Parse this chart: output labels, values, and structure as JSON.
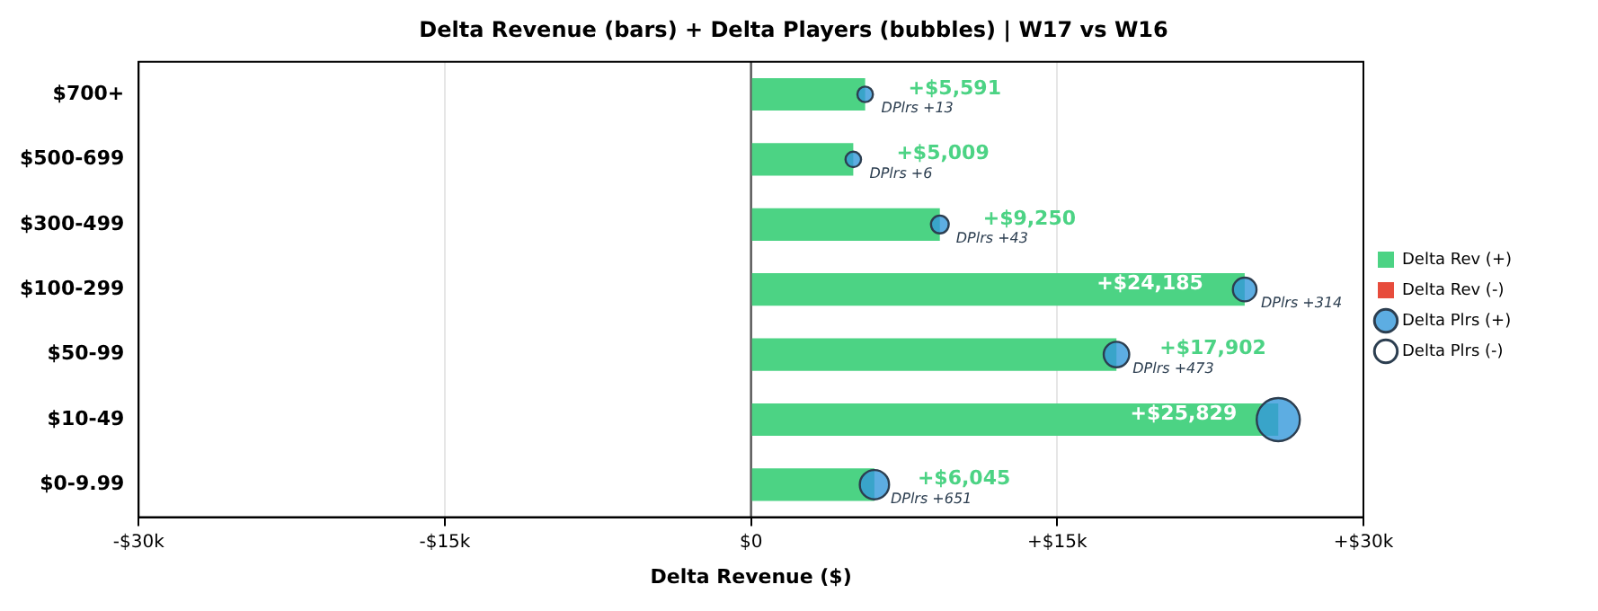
{
  "chart_data": {
    "type": "bar",
    "orientation": "horizontal",
    "title": "Delta Revenue (bars) + Delta Players (bubbles) | W17 vs W16",
    "xlabel": "Delta Revenue ($)",
    "categories": [
      "$700+",
      "$500-699",
      "$300-499",
      "$100-299",
      "$50-99",
      "$10-49",
      "$0-9.99"
    ],
    "xlim": [
      -30000,
      30000
    ],
    "xticks": [
      {
        "value": -30000,
        "label": "-$30k"
      },
      {
        "value": -15000,
        "label": "-$15k"
      },
      {
        "value": 0,
        "label": "$0"
      },
      {
        "value": 15000,
        "label": "+$15k"
      },
      {
        "value": 30000,
        "label": "+$30k"
      }
    ],
    "grid": "x",
    "legend": "right",
    "annotations": [
      {
        "text": "DPlrs +13",
        "x": 5591,
        "y": "$700+"
      },
      {
        "text": "DPlrs +6",
        "x": 5009,
        "y": "$500-699"
      },
      {
        "text": "DPlrs +43",
        "x": 9250,
        "y": "$300-499"
      },
      {
        "text": "DPlrs +314",
        "x": 24185,
        "y": "$100-299"
      },
      {
        "text": "DPlrs +473",
        "x": 17902,
        "y": "$50-99"
      },
      {
        "text": "DPlrs +651",
        "x": 6045,
        "y": "$0-9.99"
      }
    ],
    "ref_lines": [
      {
        "axis": "x",
        "value": 0,
        "color": "#555555"
      }
    ],
    "series": [
      {
        "name": "Delta Rev (+)",
        "color": "#4cd384",
        "values": [
          5591,
          5009,
          9250,
          24185,
          17902,
          25829,
          6045
        ],
        "value_labels": [
          "+$5,591",
          "+$5,009",
          "+$9,250",
          "+$24,185",
          "+$17,902",
          "+$25,829",
          "+$6,045"
        ]
      },
      {
        "name": "Delta Rev (-)",
        "color": "#e74c3c",
        "values": [
          null,
          null,
          null,
          null,
          null,
          null,
          null
        ]
      },
      {
        "name": "Delta Plrs (+)",
        "type": "bubble",
        "color": "#3498db",
        "values": [
          5591,
          5009,
          9250,
          24185,
          17902,
          25829,
          6045
        ],
        "sizes": [
          0.13,
          0.13,
          0.17,
          0.3,
          0.35,
          1,
          0.46
        ]
      },
      {
        "name": "Delta Plrs (-)",
        "type": "bubble",
        "color": "#ffffff",
        "values": [
          null,
          null,
          null,
          null,
          null,
          null,
          null
        ],
        "sizes": [
          null,
          null,
          null,
          null,
          null,
          null,
          null
        ]
      }
    ]
  }
}
